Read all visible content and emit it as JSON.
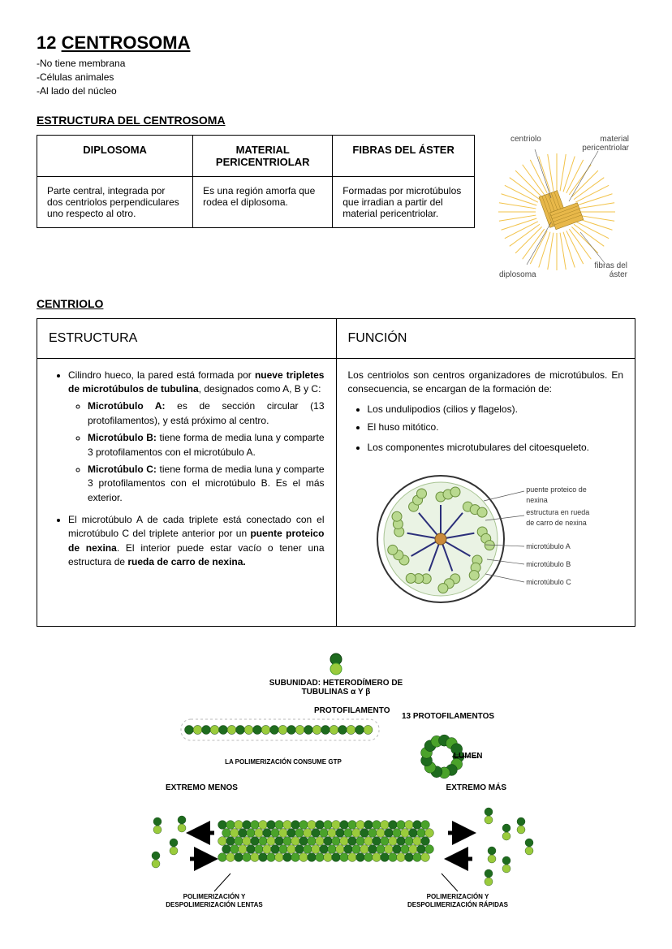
{
  "header": {
    "number": "12 ",
    "title": "CENTROSOMA",
    "bullets": [
      "No tiene membrana",
      "Células animales",
      "Al lado del núcleo"
    ]
  },
  "section1": {
    "heading": "ESTRUCTURA DEL CENTROSOMA",
    "cols": [
      "DIPLOSOMA",
      "MATERIAL PERICENTRIOLAR",
      "FIBRAS DEL ÁSTER"
    ],
    "cells": [
      "Parte central, integrada por dos centriolos perpendiculares uno respecto al otro.",
      "Es una región amorfa que rodea el diplosoma.",
      "Formadas por microtúbulos que irradian a partir del material pericentriolar."
    ]
  },
  "fig1": {
    "labels": {
      "centriolo": "centriolo",
      "material": "material pericentriolar",
      "diplosoma": "diplosoma",
      "fibras": "fibras del áster"
    },
    "colors": {
      "ray": "#f2c34a",
      "cyl_fill": "#e8b84a",
      "cyl_stroke": "#9c7a20"
    }
  },
  "section2": {
    "heading": "CENTRIOLO",
    "cols": [
      "ESTRUCTURA",
      "FUNCIÓN"
    ],
    "estructura": {
      "intro_a": "Cilindro hueco, la pared está formada por ",
      "intro_b": "nueve tripletes de microtúbulos de tubulina",
      "intro_c": ", designados como A, B y C:",
      "sub": [
        {
          "b": "Microtúbulo A:",
          "t": " es de sección circular (13 protofilamentos), y está próximo al centro."
        },
        {
          "b": "Microtúbulo B:",
          "t": " tiene forma de media luna y comparte 3 protofilamentos con el microtúbulo A."
        },
        {
          "b": "Microtúbulo C:",
          "t": " tiene forma de media luna y comparte 3 protofilamentos con el microtúbulo B. Es el más exterior."
        }
      ],
      "p2_a": "El microtúbulo A de cada triplete está conectado con el microtúbulo C del triplete anterior por un ",
      "p2_b": "puente proteico de nexina",
      "p2_c": ". El interior puede estar vacío o tener una estructura de ",
      "p2_d": "rueda de carro de nexina."
    },
    "funcion": {
      "intro": "Los centriolos son centros organizadores de microtúbulos. En consecuencia, se encargan de la formación de:",
      "items": [
        "Los undulipodios (cilios y flagelos).",
        "El huso mitótico.",
        "Los componentes microtubulares del citoesqueleto."
      ]
    }
  },
  "fig2": {
    "labels": {
      "puente": "puente proteico de nexina",
      "rueda": "estructura en rueda de carro de nexina",
      "mA": "microtúbulo A",
      "mB": "microtúbulo B",
      "mC": "microtúbulo C"
    },
    "colors": {
      "outer": "#333333",
      "membrane": "#cfe7c8",
      "triplet_fill": "#b9d98f",
      "triplet_stroke": "#6a8f3c",
      "spoke": "#2b2f7a",
      "hub": "#c98a3a"
    }
  },
  "fig3": {
    "subunidad_a": "SUBUNIDAD: HETERODÍMERO DE",
    "subunidad_b": "TUBULINAS α Y β",
    "protofilamento": "PROTOFILAMENTO",
    "trece": "13 PROTOFILAMENTOS",
    "lumen": "LUMEN",
    "gtp": "LA POLIMERIZACIÓN CONSUME GTP",
    "extremo_menos": "EXTREMO MENOS",
    "extremo_mas": "EXTREMO MÁS",
    "lentas": "POLIMERIZACIÓN Y DESPOLIMERIZACIÓN LENTAS",
    "rapidas": "POLIMERIZACIÓN Y DESPOLIMERIZACIÓN RÁPIDAS",
    "colors": {
      "g_dark": "#1e6b1e",
      "g_mid": "#4aa22a",
      "g_light": "#9acb3c",
      "stroke": "#0d3d0d",
      "arrow": "#000000",
      "cyl_outline": "#888888"
    }
  }
}
